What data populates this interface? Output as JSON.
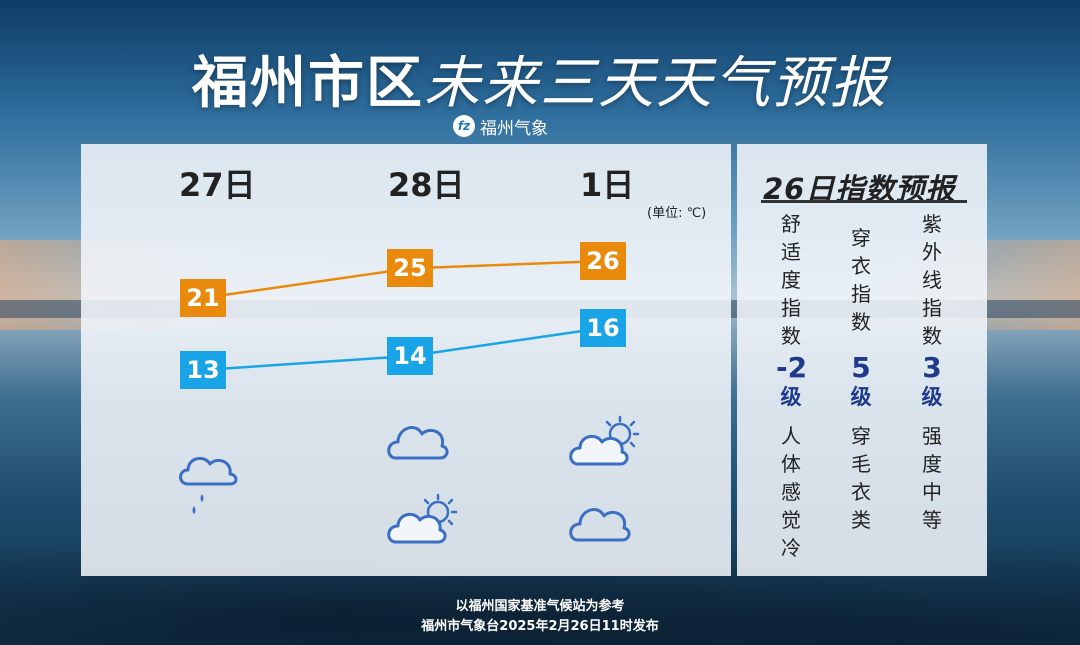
{
  "header": {
    "title_a": "福州市区",
    "title_b": "未来三天天气预报",
    "brand_icon": "fuzhou-weather-logo",
    "brand": "福州气象"
  },
  "forecast": {
    "unit": "(单位: ℃)",
    "days": [
      {
        "label": "27日",
        "icons": [
          "rain"
        ]
      },
      {
        "label": "28日",
        "icons": [
          "cloudy",
          "partly-cloudy"
        ]
      },
      {
        "label": "1日",
        "icons": [
          "partly-cloudy",
          "cloudy"
        ]
      }
    ]
  },
  "chart_data": {
    "type": "line",
    "categories": [
      "27日",
      "28日",
      "1日"
    ],
    "series": [
      {
        "values": [
          21,
          25,
          26
        ],
        "color": "#ea8a0c"
      },
      {
        "values": [
          13,
          14,
          16
        ],
        "color": "#18a4e6"
      }
    ]
  },
  "index": {
    "title": "26日指数预报",
    "items": [
      {
        "name": "舒适度指数",
        "value": "-2",
        "unit": "级",
        "desc": "人体感觉冷"
      },
      {
        "name": "穿衣指数",
        "value": "5",
        "unit": "级",
        "desc": "穿毛衣类"
      },
      {
        "name": "紫外线指数",
        "value": "3",
        "unit": "级",
        "desc": "强度 中等"
      }
    ]
  },
  "footer": {
    "line1": "以福州国家基准气候站为参考",
    "line2": "福州市气象台2025年2月26日11时发布"
  },
  "colors": {
    "high": "#ea8a0c",
    "low": "#18a4e6",
    "icon": "#3a6fc4",
    "accent": "#1d3a8c"
  }
}
